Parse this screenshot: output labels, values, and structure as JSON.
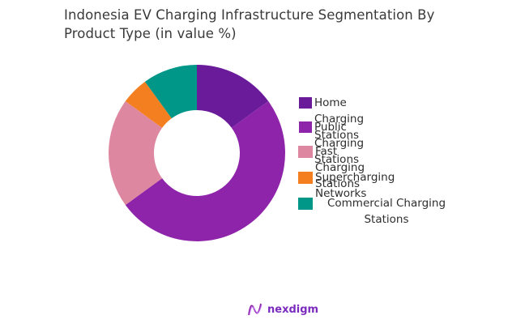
{
  "title": "Indonesia EV Charging Infrastructure Segmentation By Product Type (in value %)",
  "logo": {
    "icon": "nexdigm-wave-icon",
    "text": "nexdigm",
    "color": "#7b2cbf"
  },
  "chart_data": {
    "type": "pie",
    "variant": "donut",
    "title": "Indonesia EV Charging Infrastructure Segmentation By Product Type (in value %)",
    "categories": [
      "Home Charging Stations",
      "Public Charging Stations",
      "Fast Charging Stations",
      "Supercharging Networks",
      "Commercial Charging Stations"
    ],
    "values": [
      15,
      50,
      20,
      5,
      10
    ],
    "colors": [
      "#6a1b9a",
      "#8e24aa",
      "#dd88a0",
      "#f47f20",
      "#009688"
    ],
    "start_angle": "12 o'clock, clockwise",
    "legend_position": "right",
    "data_labels": false
  },
  "legend": {
    "items": [
      {
        "label": "Home Charging Stations",
        "color": "#6a1b9a"
      },
      {
        "label": "Public Charging Stations",
        "color": "#8e24aa"
      },
      {
        "label": "Fast Charging Stations",
        "color": "#dd88a0"
      },
      {
        "label": "Supercharging Networks",
        "color": "#f47f20"
      },
      {
        "label": "Commercial Charging Stations",
        "color": "#009688"
      }
    ]
  }
}
